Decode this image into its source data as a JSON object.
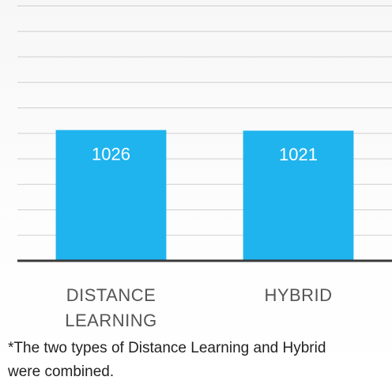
{
  "chart_data": {
    "type": "bar",
    "categories": [
      "DISTANCE LEARNING",
      "HYBRID"
    ],
    "values": [
      1026,
      1021
    ],
    "color": "#1fb4ee",
    "ylim": [
      0,
      2000
    ],
    "yticks": [
      0,
      200,
      400,
      600,
      800,
      1000,
      1200,
      1400,
      1600,
      1800,
      2000
    ],
    "grid": true,
    "note": "*The two types of Distance Learning and Hybrid were combined."
  }
}
